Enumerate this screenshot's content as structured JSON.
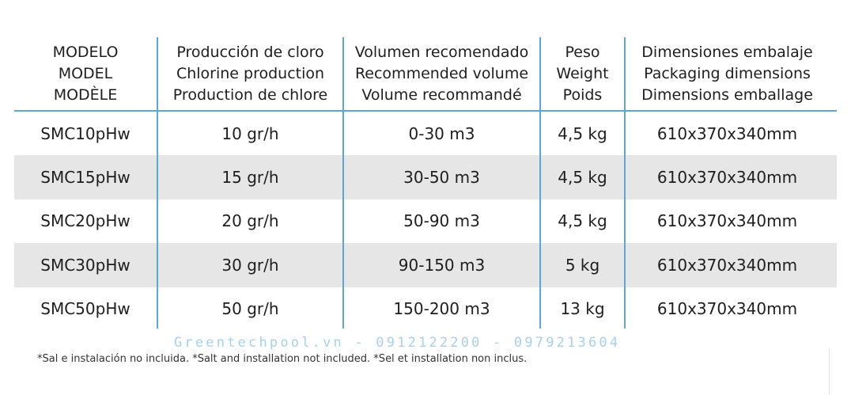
{
  "table": {
    "headers": [
      [
        "MODELO",
        "MODEL",
        "MODÈLE"
      ],
      [
        "Producción de cloro",
        "Chlorine production",
        "Production de chlore"
      ],
      [
        "Volumen recomendado",
        "Recommended volume",
        "Volume recommandé"
      ],
      [
        "Peso",
        "Weight",
        "Poids"
      ],
      [
        "Dimensiones embalaje",
        "Packaging dimensions",
        "Dimensions emballage"
      ]
    ],
    "rows": [
      [
        "SMC10pHw",
        "10 gr/h",
        "0-30 m3",
        "4,5 kg",
        "610x370x340mm"
      ],
      [
        "SMC15pHw",
        "15 gr/h",
        "30-50 m3",
        "4,5 kg",
        "610x370x340mm"
      ],
      [
        "SMC20pHw",
        "20 gr/h",
        "50-90 m3",
        "4,5 kg",
        "610x370x340mm"
      ],
      [
        "SMC30pHw",
        "30 gr/h",
        "90-150 m3",
        "5 kg",
        "610x370x340mm"
      ],
      [
        "SMC50pHw",
        "50 gr/h",
        "150-200 m3",
        "13 kg",
        "610x370x340mm"
      ]
    ]
  },
  "watermark": "Greentechpool.vn - 0912122200 - 0979213604",
  "footnote": "*Sal e instalación no incluida. *Salt and installation not included. *Sel et installation non inclus.",
  "colors": {
    "divider": "#5aa8d6",
    "row_shade": "#e6e6e6",
    "watermark": "#a8d0ea"
  }
}
